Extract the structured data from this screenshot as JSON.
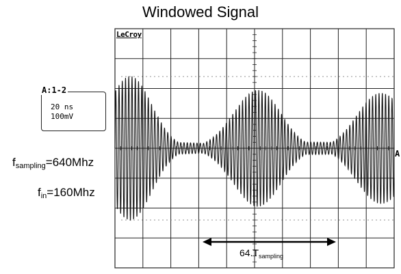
{
  "title": "Windowed Signal",
  "scope": {
    "brand": "LeCroy",
    "channel_label": "A:1-2",
    "timebase": "20 ns",
    "volts_per_div": "100mV",
    "trace_marker": "A",
    "divisions_x": 10,
    "divisions_y": 8,
    "trace_color": "#111111",
    "grid_color": "#222222"
  },
  "params": {
    "fsampling_prefix": "f",
    "fsampling_sub": "sampling",
    "fsampling_value": "=640Mhz",
    "fin_prefix": "f",
    "fin_sub": "in",
    "fin_value": "=160Mhz"
  },
  "annotation": {
    "span_prefix": "64.T",
    "span_sub": "sampling"
  }
}
